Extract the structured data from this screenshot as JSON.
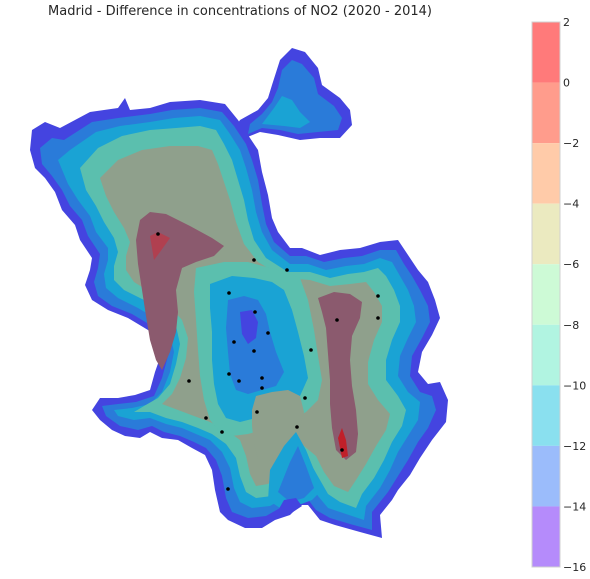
{
  "title": "Madrid - Difference in concentrations of NO2 (2020 - 2014)",
  "colorbar": {
    "ticks": [
      "2",
      "0",
      "−2",
      "−4",
      "−6",
      "−8",
      "−10",
      "−12",
      "−14",
      "−16"
    ],
    "bands": [
      {
        "from": 0,
        "to": 2,
        "color": "#ff7a7a"
      },
      {
        "from": -2,
        "to": 0,
        "color": "#ff9c8c"
      },
      {
        "from": -4,
        "to": -2,
        "color": "#ffcba9"
      },
      {
        "from": -6,
        "to": -4,
        "color": "#ebeac0"
      },
      {
        "from": -8,
        "to": -6,
        "color": "#cdfad6"
      },
      {
        "from": -10,
        "to": -8,
        "color": "#b1f4e1"
      },
      {
        "from": -12,
        "to": -10,
        "color": "#8ae0ef"
      },
      {
        "from": -14,
        "to": -12,
        "color": "#9bbcfb"
      },
      {
        "from": -16,
        "to": -14,
        "color": "#b58bfb"
      }
    ]
  },
  "map_fill_colors": {
    "edge": "#4444e0",
    "outer": "#2a7bd9",
    "ring1": "#1aa3d4",
    "ring2": "#5bbfae",
    "inner": "#8fa08c",
    "core": "#8b5a6e",
    "hot": "#c0202a"
  }
}
